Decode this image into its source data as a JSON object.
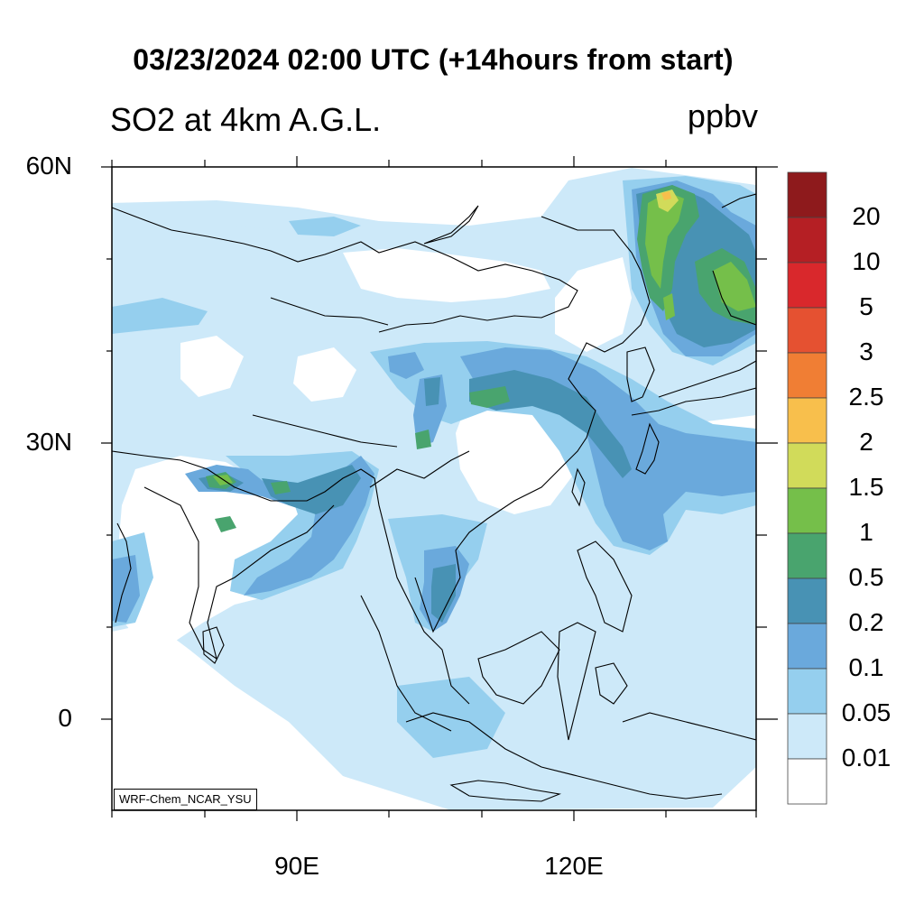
{
  "header": {
    "title": "03/23/2024 02:00 UTC (+14hours from start)",
    "variable_label": "SO2 at 4km A.G.L.",
    "units": "ppbv"
  },
  "map": {
    "lat_labels": [
      "60N",
      "30N",
      "0"
    ],
    "lon_labels": [
      "90E",
      "120E"
    ],
    "credit": "WRF-Chem_NCAR_YSU"
  },
  "colorbar": {
    "levels": [
      "20",
      "10",
      "5",
      "3",
      "2.5",
      "2",
      "1.5",
      "1",
      "0.5",
      "0.2",
      "0.1",
      "0.05",
      "0.01"
    ],
    "colors": [
      "#8e1a1c",
      "#b51f24",
      "#d9282c",
      "#e55131",
      "#f07e34",
      "#f8bf4c",
      "#d1db5a",
      "#75bf4a",
      "#49a46e",
      "#4892b4",
      "#6aa9dc",
      "#95cfee",
      "#cde9f9",
      "#ffffff"
    ]
  }
}
